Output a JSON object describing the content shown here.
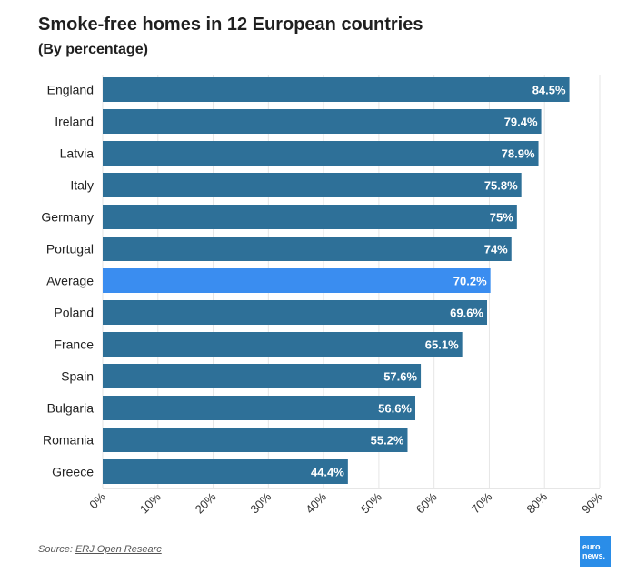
{
  "header": {
    "title": "Smoke-free homes in 12 European countries",
    "subtitle": "(By percentage)"
  },
  "source": {
    "prefix": "Source: ",
    "link": "ERJ Open Researc"
  },
  "logo": {
    "line1": "euro",
    "line2": "news."
  },
  "colors": {
    "bar": "#2e7098",
    "highlight": "#3a8df0",
    "grid": "#e6e6e6",
    "label": "#ffffff"
  },
  "chart_data": {
    "type": "bar",
    "orientation": "horizontal",
    "title": "Smoke-free homes in 12 European countries",
    "subtitle": "(By percentage)",
    "categories": [
      "England",
      "Ireland",
      "Latvia",
      "Italy",
      "Germany",
      "Portugal",
      "Average",
      "Poland",
      "France",
      "Spain",
      "Bulgaria",
      "Romania",
      "Greece"
    ],
    "values": [
      84.5,
      79.4,
      78.9,
      75.8,
      75,
      74,
      70.2,
      69.6,
      65.1,
      57.6,
      56.6,
      55.2,
      44.4
    ],
    "value_labels": [
      "84.5%",
      "79.4%",
      "78.9%",
      "75.8%",
      "75%",
      "74%",
      "70.2%",
      "69.6%",
      "65.1%",
      "57.6%",
      "56.6%",
      "55.2%",
      "44.4%"
    ],
    "highlight_category": "Average",
    "xlim": [
      0,
      90
    ],
    "xticks": [
      0,
      10,
      20,
      30,
      40,
      50,
      60,
      70,
      80,
      90
    ],
    "xtick_labels": [
      "0%",
      "10%",
      "20%",
      "30%",
      "40%",
      "50%",
      "60%",
      "70%",
      "80%",
      "90%"
    ],
    "grid": true,
    "legend": "none"
  }
}
